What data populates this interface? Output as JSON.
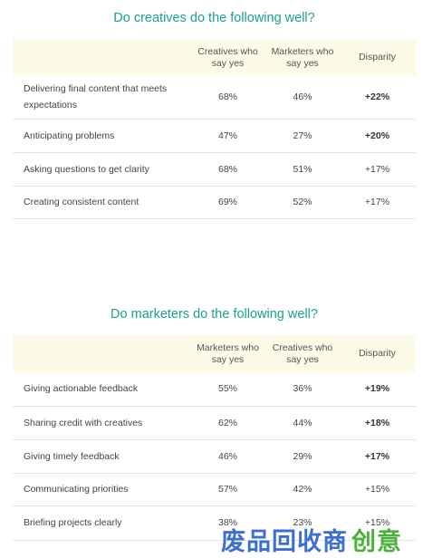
{
  "creatives": {
    "title": "Do creatives do the following well?",
    "headers": [
      "",
      "Creatives who say yes",
      "Marketers who say yes",
      "Disparity"
    ],
    "rows": [
      {
        "label": "Delivering final content that meets expectations",
        "c1": "68%",
        "c2": "46%",
        "disparity": "+22%",
        "bold": true
      },
      {
        "label": "Anticipating problems",
        "c1": "47%",
        "c2": "27%",
        "disparity": "+20%",
        "bold": true
      },
      {
        "label": "Asking questions to get clarity",
        "c1": "68%",
        "c2": "51%",
        "disparity": "+17%",
        "bold": false
      },
      {
        "label": "Creating consistent content",
        "c1": "69%",
        "c2": "52%",
        "disparity": "+17%",
        "bold": false
      }
    ]
  },
  "marketers": {
    "title": "Do marketers do the following well?",
    "headers": [
      "",
      "Marketers who say yes",
      "Creatives who say yes",
      "Disparity"
    ],
    "rows": [
      {
        "label": "Giving actionable feedback",
        "c1": "55%",
        "c2": "36%",
        "disparity": "+19%",
        "bold": true
      },
      {
        "label": "Sharing credit with creatives",
        "c1": "62%",
        "c2": "44%",
        "disparity": "+18%",
        "bold": true
      },
      {
        "label": "Giving timely feedback",
        "c1": "46%",
        "c2": "29%",
        "disparity": "+17%",
        "bold": true
      },
      {
        "label": "Communicating priorities",
        "c1": "57%",
        "c2": "42%",
        "disparity": "+15%",
        "bold": false
      },
      {
        "label": "Briefing projects clearly",
        "c1": "38%",
        "c2": "23%",
        "disparity": "+15%",
        "bold": false
      }
    ]
  },
  "watermark": {
    "part1": "废品回收商",
    "part2": "创意"
  }
}
